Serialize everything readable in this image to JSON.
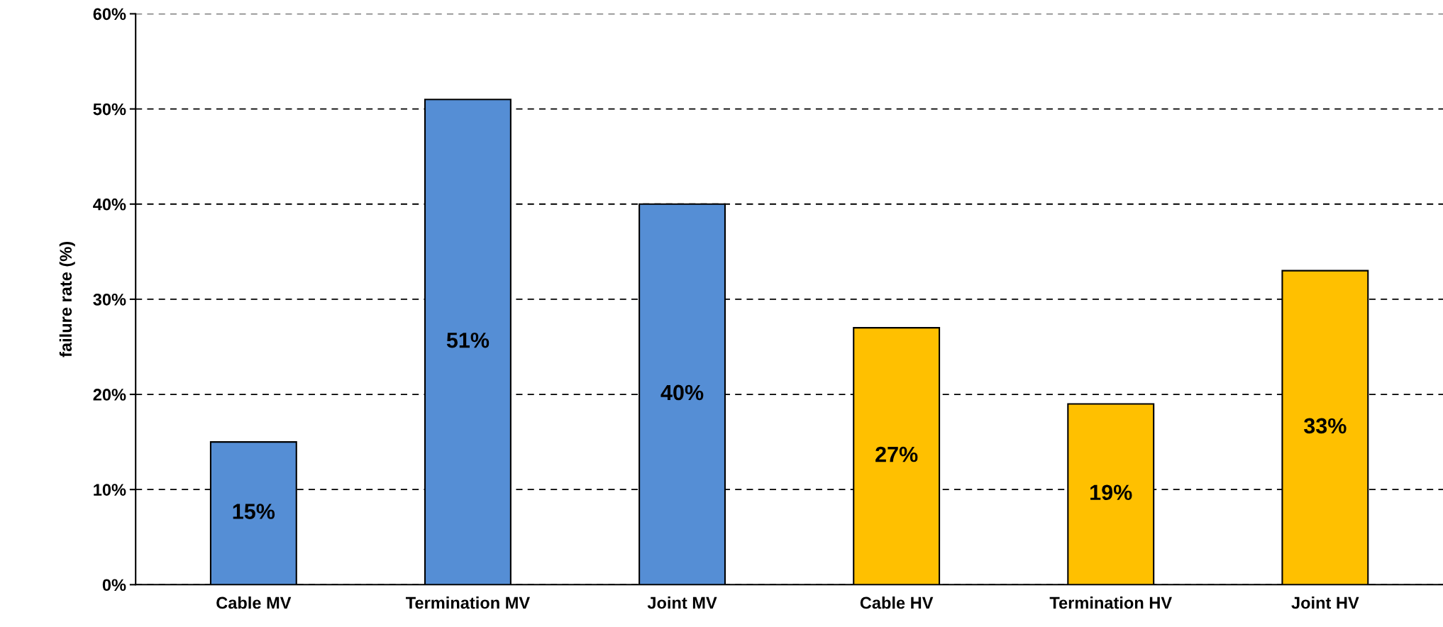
{
  "chart_data": {
    "type": "bar",
    "ylabel": "failure rate (%)",
    "categories": [
      "Cable MV",
      "Termination MV",
      "Joint MV",
      "Cable HV",
      "Termination HV",
      "Joint HV"
    ],
    "values": [
      15,
      51,
      40,
      27,
      19,
      33
    ],
    "colors": [
      "#558ed5",
      "#558ed5",
      "#558ed5",
      "#ffc000",
      "#ffc000",
      "#ffc000"
    ],
    "value_labels": [
      "15%",
      "51%",
      "40%",
      "27%",
      "19%",
      "33%"
    ],
    "ylim": [
      0,
      60
    ],
    "yticks": [
      {
        "value": 0,
        "label": "0%"
      },
      {
        "value": 10,
        "label": "10%"
      },
      {
        "value": 20,
        "label": "20%"
      },
      {
        "value": 30,
        "label": "30%"
      },
      {
        "value": 40,
        "label": "40%"
      },
      {
        "value": 50,
        "label": "50%"
      },
      {
        "value": 60,
        "label": "60%"
      }
    ],
    "grid": "y",
    "legend": false
  }
}
